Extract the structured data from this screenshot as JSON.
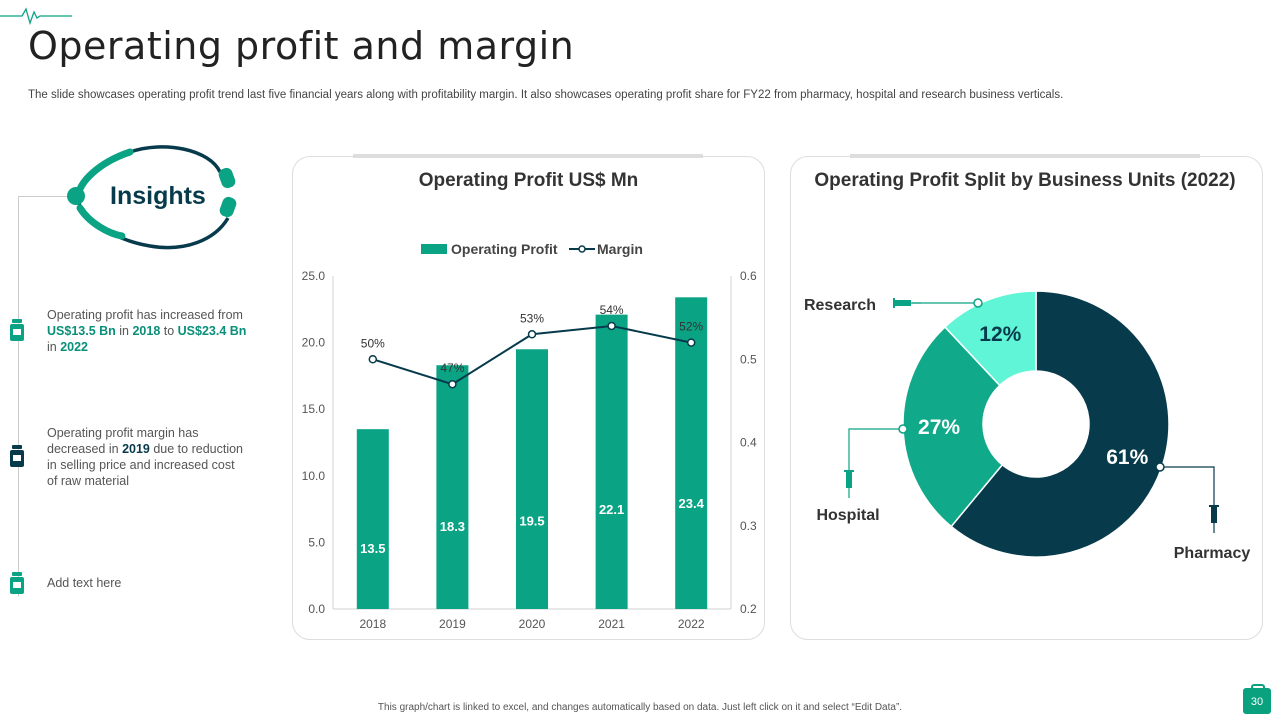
{
  "page": {
    "title": "Operating profit and margin",
    "subtitle": "The slide showcases operating profit trend last five financial years along with profitability margin. It also showcases operating profit share for FY22 from pharmacy, hospital and research business verticals.",
    "footer": "This graph/chart is linked to excel, and changes automatically based on data. Just left click on it and select “Edit Data”.",
    "page_number": "30"
  },
  "insights": {
    "heading": "Insights",
    "points": [
      {
        "t1": "Operating profit has increased from ",
        "h1": "US$13.5 Bn",
        "t2": " in ",
        "h2": "2018",
        "t3": " to ",
        "h3": "US$23.4 Bn",
        "t4": " in ",
        "h4": "2022"
      },
      {
        "t1": "Operating profit margin has decreased in ",
        "h1": "2019",
        "t2": " due to reduction in selling price and increased cost of raw material"
      },
      {
        "t1": "Add text here"
      }
    ]
  },
  "colors": {
    "teal": "#0aa384",
    "dark": "#073b4c",
    "mint": "#5ff5d6",
    "mid": "#10a98a"
  },
  "chart_data": [
    {
      "type": "bar",
      "title": "Operating Profit US$ Mn",
      "categories": [
        "2018",
        "2019",
        "2020",
        "2021",
        "2022"
      ],
      "series": [
        {
          "name": "Operating Profit",
          "type": "bar",
          "axis": "left",
          "values": [
            13.5,
            18.3,
            19.5,
            22.1,
            23.4
          ],
          "labels": [
            "13.5",
            "18.3",
            "19.5",
            "22.1",
            "23.4"
          ]
        },
        {
          "name": "Margin",
          "type": "line",
          "axis": "right",
          "values": [
            0.5,
            0.47,
            0.53,
            0.54,
            0.52
          ],
          "labels": [
            "50%",
            "47%",
            "53%",
            "54%",
            "52%"
          ]
        }
      ],
      "ylim": [
        0,
        25
      ],
      "y_ticks": [
        "0.0",
        "5.0",
        "10.0",
        "15.0",
        "20.0",
        "25.0"
      ],
      "y2lim": [
        0.2,
        0.6
      ],
      "y2_ticks": [
        "0.2",
        "0.3",
        "0.4",
        "0.5",
        "0.6"
      ],
      "legend": "top-center",
      "grid": false
    },
    {
      "type": "pie",
      "subtype": "donut",
      "title": "Operating Profit Split by Business Units (2022)",
      "slices": [
        {
          "name": "Pharmacy",
          "value": 61,
          "label": "61%"
        },
        {
          "name": "Hospital",
          "value": 27,
          "label": "27%"
        },
        {
          "name": "Research",
          "value": 12,
          "label": "12%"
        }
      ]
    }
  ]
}
